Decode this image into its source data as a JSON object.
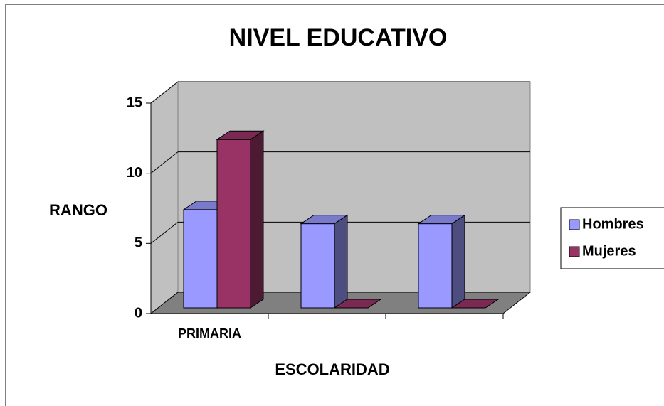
{
  "chart_data": {
    "type": "bar3d",
    "title": "NIVEL EDUCATIVO",
    "x_label": "ESCOLARIDAD",
    "y_label": "RANGO",
    "categories": [
      "PRIMARIA",
      null,
      null
    ],
    "series": [
      {
        "name": "Hombres",
        "color": "#9999ff",
        "values": [
          7,
          6,
          6
        ]
      },
      {
        "name": "Mujeres",
        "color": "#993366",
        "values": [
          12,
          0,
          0
        ]
      }
    ],
    "ylim": [
      0,
      15
    ],
    "yticks": [
      0,
      5,
      10,
      15
    ],
    "grid": true,
    "legend": "right"
  }
}
